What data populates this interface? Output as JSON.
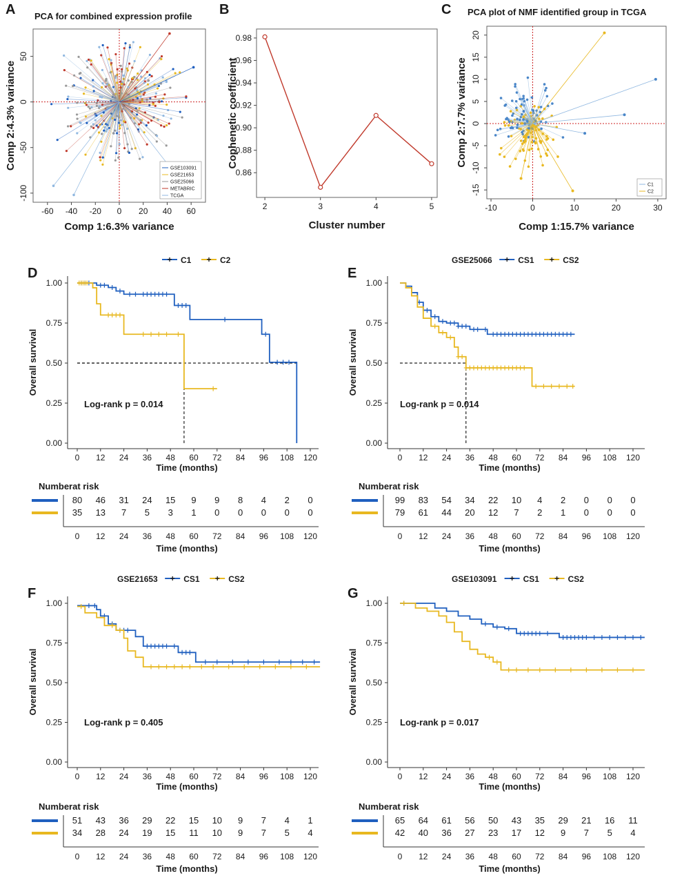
{
  "colors": {
    "blue": "#1f5fbf",
    "yellow": "#e8b820",
    "red": "#c0392b",
    "lightblue": "#8fb7e0",
    "grey": "#999999",
    "ref_red": "#cc2222"
  },
  "chart_data": [
    {
      "panel": "A",
      "type": "scatter",
      "title": "PCA for combined expression profile",
      "xlabel": "Comp 1:6.3%  variance",
      "ylabel": "Comp 2:4.3%  variance",
      "xlim": [
        -72,
        72
      ],
      "ylim": [
        -110,
        80
      ],
      "xticks": [
        "-60",
        "-40",
        "-20",
        "0",
        "20",
        "40",
        "60"
      ],
      "yticks": [
        "-100",
        "-50",
        "0",
        "50"
      ],
      "legend": [
        "GSE103091",
        "GSE21653",
        "GSE25066",
        "METABRIC",
        "TCGA"
      ],
      "legend_position": "bottom-right",
      "series_note": "biplot: every sample is a point joined to the origin; combined cohorts"
    },
    {
      "panel": "B",
      "type": "line",
      "title": "",
      "xlabel": "Cluster number",
      "ylabel": "Cophenetic coefficient",
      "x": [
        2,
        3,
        4,
        5
      ],
      "values": [
        0.981,
        0.847,
        0.911,
        0.868
      ],
      "xlim": [
        1.85,
        5.1
      ],
      "ylim": [
        0.838,
        0.988
      ],
      "xticks": [
        "2",
        "3",
        "4",
        "5"
      ],
      "yticks": [
        "0.86",
        "0.88",
        "0.90",
        "0.92",
        "0.94",
        "0.96",
        "0.98"
      ]
    },
    {
      "panel": "C",
      "type": "scatter",
      "title": "PCA plot of NMF identified group in TCGA",
      "xlabel": "Comp 1:15.7%  variance",
      "ylabel": "Comp 2:7.7%  variance",
      "xlim": [
        -11,
        32
      ],
      "ylim": [
        -17,
        22
      ],
      "xticks": [
        "-10",
        "0",
        "10",
        "20",
        "30"
      ],
      "yticks": [
        "-15",
        "-10",
        "-5",
        "0",
        "5",
        "10",
        "15",
        "20"
      ],
      "legend": [
        "C1",
        "C2"
      ],
      "legend_position": "bottom-right",
      "outliers": {
        "C2": [
          [
            17.2,
            20.5
          ],
          [
            9.6,
            -15.2
          ],
          [
            -2.8,
            -12.4
          ]
        ],
        "C1": [
          [
            29.5,
            10.0
          ],
          [
            22.0,
            2.0
          ],
          [
            12.5,
            -2.2
          ]
        ]
      }
    },
    {
      "panel": "D",
      "type": "line",
      "title": "",
      "legend": [
        "C1",
        "C2"
      ],
      "xlabel": "Time (months)",
      "ylabel": "Overall survival",
      "pval": "Log-rank p = 0.014",
      "xticks": [
        "0",
        "12",
        "24",
        "36",
        "48",
        "60",
        "72",
        "84",
        "96",
        "108",
        "120"
      ],
      "yticks": [
        "0.00",
        "0.25",
        "0.50",
        "0.75",
        "1.00"
      ],
      "series": [
        {
          "name": "C1",
          "points": [
            [
              0,
              1.0
            ],
            [
              8,
              1.0
            ],
            [
              10,
              0.986
            ],
            [
              16,
              0.972
            ],
            [
              20,
              0.95
            ],
            [
              24,
              0.93
            ],
            [
              48,
              0.93
            ],
            [
              50,
              0.86
            ],
            [
              57,
              0.86
            ],
            [
              58,
              0.772
            ],
            [
              93,
              0.772
            ],
            [
              95,
              0.68
            ],
            [
              98,
              0.68
            ],
            [
              99,
              0.505
            ],
            [
              113,
              0.505
            ],
            [
              113,
              0.0
            ]
          ],
          "censors": [
            2,
            4,
            6,
            12,
            14,
            18,
            22,
            27,
            30,
            34,
            36,
            38,
            40,
            42,
            44,
            46,
            52,
            54,
            56,
            76,
            97,
            103,
            106,
            109
          ]
        },
        {
          "name": "C2",
          "points": [
            [
              0,
              1.0
            ],
            [
              6,
              1.0
            ],
            [
              8,
              0.97
            ],
            [
              10,
              0.87
            ],
            [
              12,
              0.8
            ],
            [
              20,
              0.8
            ],
            [
              24,
              0.68
            ],
            [
              54,
              0.68
            ],
            [
              55,
              0.34
            ],
            [
              72,
              0.34
            ]
          ],
          "censors": [
            1,
            2,
            3,
            4,
            5,
            16,
            18,
            20,
            22,
            34,
            38,
            42,
            46,
            52,
            70
          ]
        }
      ],
      "median_lines": [
        [
          55,
          0.5
        ],
        [
          113,
          0.5
        ]
      ],
      "risk_label": "Numberat risk",
      "risk_times": [
        "0",
        "12",
        "24",
        "36",
        "48",
        "60",
        "72",
        "84",
        "96",
        "108",
        "120"
      ],
      "risk": [
        {
          "name": "C1",
          "values": [
            "80",
            "46",
            "31",
            "24",
            "15",
            "9",
            "9",
            "8",
            "4",
            "2",
            "0"
          ]
        },
        {
          "name": "C2",
          "values": [
            "35",
            "13",
            "7",
            "5",
            "3",
            "1",
            "0",
            "0",
            "0",
            "0",
            "0"
          ]
        }
      ]
    },
    {
      "panel": "E",
      "type": "line",
      "title": "GSE25066",
      "legend": [
        "CS1",
        "CS2"
      ],
      "xlabel": "Time (months)",
      "ylabel": "Overall survival",
      "pval": "Log-rank p = 0.014",
      "xticks": [
        "0",
        "12",
        "24",
        "36",
        "48",
        "60",
        "72",
        "84",
        "96",
        "108",
        "120"
      ],
      "yticks": [
        "0.00",
        "0.25",
        "0.50",
        "0.75",
        "1.00"
      ],
      "series": [
        {
          "name": "CS1",
          "points": [
            [
              0,
              1.0
            ],
            [
              3,
              0.98
            ],
            [
              6,
              0.94
            ],
            [
              9,
              0.88
            ],
            [
              12,
              0.83
            ],
            [
              16,
              0.79
            ],
            [
              20,
              0.76
            ],
            [
              24,
              0.75
            ],
            [
              30,
              0.73
            ],
            [
              36,
              0.71
            ],
            [
              42,
              0.71
            ],
            [
              45,
              0.68
            ],
            [
              90,
              0.68
            ]
          ],
          "censors": [
            10,
            14,
            18,
            22,
            26,
            28,
            30,
            32,
            34,
            38,
            40,
            44,
            48,
            50,
            52,
            54,
            56,
            58,
            60,
            62,
            64,
            66,
            68,
            70,
            72,
            74,
            76,
            78,
            80,
            82,
            84,
            86,
            88
          ]
        },
        {
          "name": "CS2",
          "points": [
            [
              0,
              1.0
            ],
            [
              3,
              0.97
            ],
            [
              6,
              0.92
            ],
            [
              9,
              0.85
            ],
            [
              12,
              0.78
            ],
            [
              16,
              0.73
            ],
            [
              20,
              0.69
            ],
            [
              24,
              0.66
            ],
            [
              28,
              0.6
            ],
            [
              30,
              0.54
            ],
            [
              34,
              0.47
            ],
            [
              67,
              0.47
            ],
            [
              68,
              0.355
            ],
            [
              90,
              0.355
            ]
          ],
          "censors": [
            18,
            22,
            26,
            30,
            32,
            34,
            36,
            38,
            40,
            42,
            44,
            46,
            48,
            50,
            52,
            54,
            56,
            58,
            60,
            62,
            64,
            70,
            74,
            78,
            82,
            86,
            89
          ]
        }
      ],
      "median_lines": [
        [
          34,
          0.5
        ]
      ],
      "risk_label": "Numberat risk",
      "risk_times": [
        "0",
        "12",
        "24",
        "36",
        "48",
        "60",
        "72",
        "84",
        "96",
        "108",
        "120"
      ],
      "risk": [
        {
          "name": "CS1",
          "values": [
            "99",
            "83",
            "54",
            "34",
            "22",
            "10",
            "4",
            "2",
            "0",
            "0",
            "0"
          ]
        },
        {
          "name": "CS2",
          "values": [
            "79",
            "61",
            "44",
            "20",
            "12",
            "7",
            "2",
            "1",
            "0",
            "0",
            "0"
          ]
        }
      ]
    },
    {
      "panel": "F",
      "type": "line",
      "title": "GSE21653",
      "legend": [
        "CS1",
        "CS2"
      ],
      "xlabel": "Time (months)",
      "ylabel": "Overall survival",
      "pval": "Log-rank p = 0.405",
      "xticks": [
        "0",
        "12",
        "24",
        "36",
        "48",
        "60",
        "72",
        "84",
        "96",
        "108",
        "120"
      ],
      "yticks": [
        "0.00",
        "0.25",
        "0.50",
        "0.75",
        "1.00"
      ],
      "series": [
        {
          "name": "CS1",
          "points": [
            [
              0,
              0.985
            ],
            [
              8,
              0.985
            ],
            [
              10,
              0.96
            ],
            [
              12,
              0.92
            ],
            [
              16,
              0.87
            ],
            [
              20,
              0.83
            ],
            [
              28,
              0.83
            ],
            [
              30,
              0.79
            ],
            [
              34,
              0.73
            ],
            [
              48,
              0.73
            ],
            [
              52,
              0.69
            ],
            [
              60,
              0.69
            ],
            [
              61,
              0.63
            ],
            [
              125,
              0.63
            ]
          ],
          "censors": [
            6,
            9,
            14,
            18,
            22,
            24,
            26,
            36,
            38,
            40,
            42,
            44,
            46,
            50,
            54,
            56,
            58,
            66,
            72,
            80,
            88,
            96,
            104,
            110,
            116,
            122
          ]
        },
        {
          "name": "CS2",
          "points": [
            [
              0,
              0.98
            ],
            [
              3,
              0.98
            ],
            [
              4,
              0.94
            ],
            [
              10,
              0.91
            ],
            [
              14,
              0.86
            ],
            [
              20,
              0.83
            ],
            [
              24,
              0.78
            ],
            [
              26,
              0.7
            ],
            [
              30,
              0.66
            ],
            [
              34,
              0.6
            ],
            [
              125,
              0.6
            ]
          ],
          "censors": [
            2,
            18,
            22,
            38,
            42,
            46,
            50,
            54,
            58,
            64,
            70,
            78,
            86,
            94,
            102,
            110,
            118
          ]
        }
      ],
      "median_lines": [],
      "risk_label": "Numberat risk",
      "risk_times": [
        "0",
        "12",
        "24",
        "36",
        "48",
        "60",
        "72",
        "84",
        "96",
        "108",
        "120"
      ],
      "risk": [
        {
          "name": "CS1",
          "values": [
            "51",
            "43",
            "36",
            "29",
            "22",
            "15",
            "10",
            "9",
            "7",
            "4",
            "1"
          ]
        },
        {
          "name": "CS2",
          "values": [
            "34",
            "28",
            "24",
            "19",
            "15",
            "11",
            "10",
            "9",
            "7",
            "5",
            "4"
          ]
        }
      ]
    },
    {
      "panel": "G",
      "type": "line",
      "title": "GSE103091",
      "legend": [
        "CS1",
        "CS2"
      ],
      "xlabel": "Time (months)",
      "ylabel": "Overall survival",
      "pval": "Log-rank p = 0.017",
      "xticks": [
        "0",
        "12",
        "24",
        "36",
        "48",
        "60",
        "72",
        "84",
        "96",
        "108",
        "120"
      ],
      "yticks": [
        "0.00",
        "0.25",
        "0.50",
        "0.75",
        "1.00"
      ],
      "series": [
        {
          "name": "CS1",
          "points": [
            [
              0,
              1.0
            ],
            [
              12,
              1.0
            ],
            [
              18,
              0.97
            ],
            [
              24,
              0.95
            ],
            [
              30,
              0.92
            ],
            [
              36,
              0.9
            ],
            [
              42,
              0.87
            ],
            [
              48,
              0.85
            ],
            [
              54,
              0.84
            ],
            [
              60,
              0.81
            ],
            [
              78,
              0.81
            ],
            [
              82,
              0.785
            ],
            [
              126,
              0.785
            ]
          ],
          "censors": [
            2,
            44,
            50,
            56,
            62,
            64,
            66,
            68,
            70,
            72,
            76,
            84,
            86,
            88,
            90,
            92,
            94,
            96,
            100,
            104,
            108,
            112,
            116,
            120,
            124
          ]
        },
        {
          "name": "CS2",
          "points": [
            [
              0,
              1.0
            ],
            [
              8,
              0.97
            ],
            [
              14,
              0.95
            ],
            [
              20,
              0.92
            ],
            [
              24,
              0.88
            ],
            [
              28,
              0.82
            ],
            [
              32,
              0.76
            ],
            [
              36,
              0.71
            ],
            [
              40,
              0.68
            ],
            [
              44,
              0.66
            ],
            [
              48,
              0.63
            ],
            [
              52,
              0.58
            ],
            [
              126,
              0.58
            ]
          ],
          "censors": [
            2,
            46,
            50,
            56,
            60,
            66,
            72,
            80,
            88,
            96,
            104,
            112,
            120
          ]
        }
      ],
      "median_lines": [],
      "risk_label": "Numberat risk",
      "risk_times": [
        "0",
        "12",
        "24",
        "36",
        "48",
        "60",
        "72",
        "84",
        "96",
        "108",
        "120"
      ],
      "risk": [
        {
          "name": "CS1",
          "values": [
            "65",
            "64",
            "61",
            "56",
            "50",
            "43",
            "35",
            "29",
            "21",
            "16",
            "11"
          ]
        },
        {
          "name": "CS2",
          "values": [
            "42",
            "40",
            "36",
            "27",
            "23",
            "17",
            "12",
            "9",
            "7",
            "5",
            "4"
          ]
        }
      ]
    }
  ]
}
